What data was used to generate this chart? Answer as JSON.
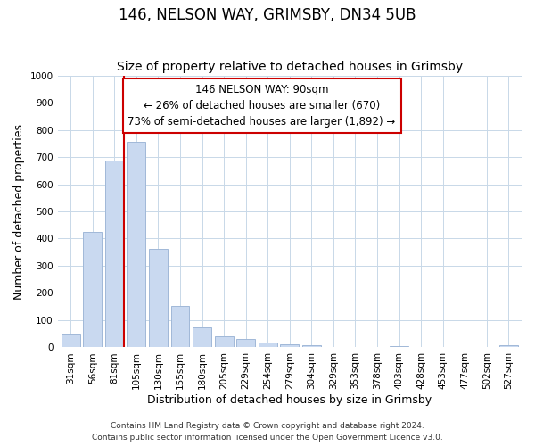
{
  "title": "146, NELSON WAY, GRIMSBY, DN34 5UB",
  "subtitle": "Size of property relative to detached houses in Grimsby",
  "xlabel": "Distribution of detached houses by size in Grimsby",
  "ylabel": "Number of detached properties",
  "bar_labels": [
    "31sqm",
    "56sqm",
    "81sqm",
    "105sqm",
    "130sqm",
    "155sqm",
    "180sqm",
    "205sqm",
    "229sqm",
    "254sqm",
    "279sqm",
    "304sqm",
    "329sqm",
    "353sqm",
    "378sqm",
    "403sqm",
    "428sqm",
    "453sqm",
    "477sqm",
    "502sqm",
    "527sqm"
  ],
  "bar_values": [
    52,
    425,
    688,
    757,
    363,
    153,
    75,
    40,
    32,
    18,
    12,
    7,
    0,
    0,
    0,
    5,
    0,
    0,
    0,
    0,
    7
  ],
  "bar_color": "#c9d9f0",
  "bar_edge_color": "#a0b8d8",
  "annotation_text": "146 NELSON WAY: 90sqm\n← 26% of detached houses are smaller (670)\n73% of semi-detached houses are larger (1,892) →",
  "annotation_box_color": "#ffffff",
  "annotation_box_edge": "#cc0000",
  "redline_color": "#cc0000",
  "ylim": [
    0,
    1000
  ],
  "yticks": [
    0,
    100,
    200,
    300,
    400,
    500,
    600,
    700,
    800,
    900,
    1000
  ],
  "footer_line1": "Contains HM Land Registry data © Crown copyright and database right 2024.",
  "footer_line2": "Contains public sector information licensed under the Open Government Licence v3.0.",
  "title_fontsize": 12,
  "subtitle_fontsize": 10,
  "axis_label_fontsize": 9,
  "tick_fontsize": 7.5,
  "annotation_fontsize": 8.5,
  "footer_fontsize": 6.5,
  "redline_bar_index": 2
}
